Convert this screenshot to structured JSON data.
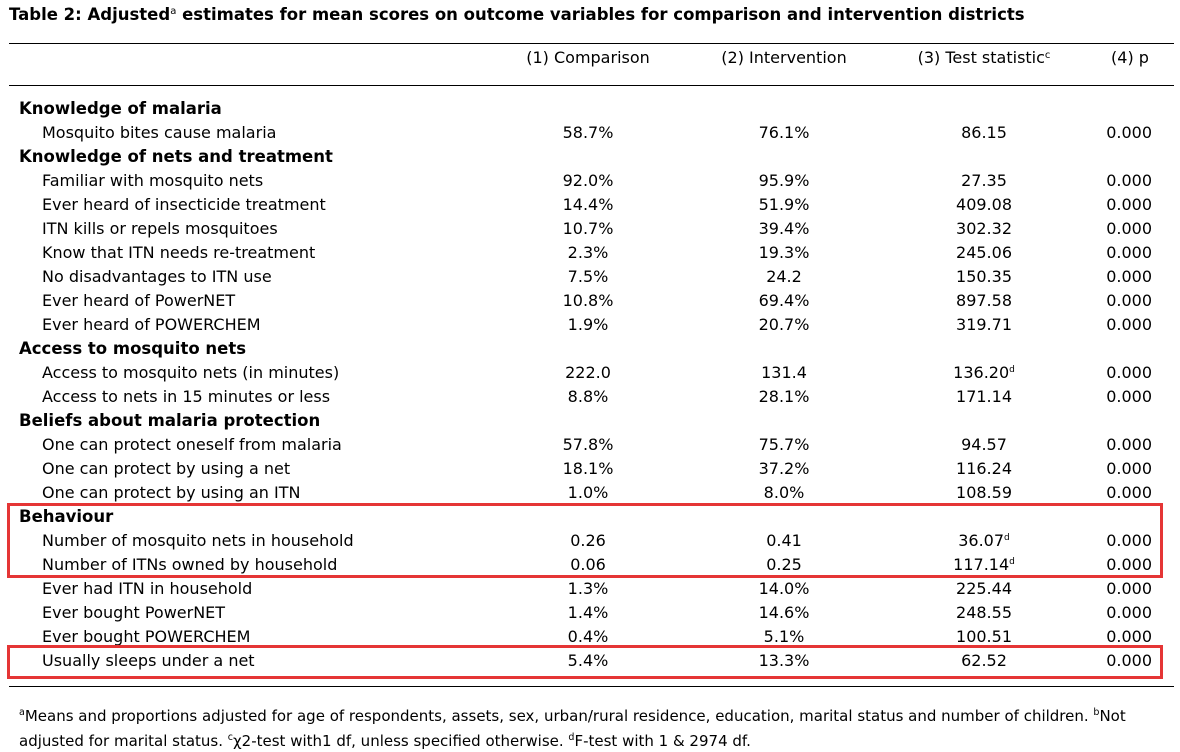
{
  "caption": {
    "prefix": "Table 2: Adjusted",
    "sup": "a",
    "suffix": " estimates for mean scores on outcome variables for comparison and intervention districts"
  },
  "columns": [
    {
      "label": "(1) Comparison",
      "sup": ""
    },
    {
      "label": "(2) Intervention",
      "sup": ""
    },
    {
      "label": "(3) Test statistic",
      "sup": "c"
    },
    {
      "label": "(4) p",
      "sup": ""
    }
  ],
  "rows": [
    {
      "type": "section",
      "label": "Knowledge of malaria"
    },
    {
      "type": "item",
      "label": "Mosquito bites cause malaria",
      "c1": "58.7%",
      "c2": "76.1%",
      "c3": "86.15",
      "c3sup": "",
      "p": "0.000"
    },
    {
      "type": "section",
      "label": "Knowledge of nets and treatment"
    },
    {
      "type": "item",
      "label": "Familiar with mosquito nets",
      "c1": "92.0%",
      "c2": "95.9%",
      "c3": "27.35",
      "c3sup": "",
      "p": "0.000"
    },
    {
      "type": "item",
      "label": "Ever heard of insecticide treatment",
      "c1": "14.4%",
      "c2": "51.9%",
      "c3": "409.08",
      "c3sup": "",
      "p": "0.000"
    },
    {
      "type": "item",
      "label": "ITN kills or repels mosquitoes",
      "c1": "10.7%",
      "c2": "39.4%",
      "c3": "302.32",
      "c3sup": "",
      "p": "0.000"
    },
    {
      "type": "item",
      "label": "Know that ITN needs re-treatment",
      "c1": "2.3%",
      "c2": "19.3%",
      "c3": "245.06",
      "c3sup": "",
      "p": "0.000"
    },
    {
      "type": "item",
      "label": "No disadvantages to ITN use",
      "c1": "7.5%",
      "c2": "24.2",
      "c3": "150.35",
      "c3sup": "",
      "p": "0.000"
    },
    {
      "type": "item",
      "label": "Ever heard of PowerNET",
      "c1": "10.8%",
      "c2": "69.4%",
      "c3": "897.58",
      "c3sup": "",
      "p": "0.000"
    },
    {
      "type": "item",
      "label": "Ever heard of POWERCHEM",
      "c1": "1.9%",
      "c2": "20.7%",
      "c3": "319.71",
      "c3sup": "",
      "p": "0.000"
    },
    {
      "type": "section",
      "label": "Access to mosquito nets"
    },
    {
      "type": "item",
      "label": "Access to mosquito nets (in minutes)",
      "c1": "222.0",
      "c2": "131.4",
      "c3": "136.20",
      "c3sup": "d",
      "p": "0.000"
    },
    {
      "type": "item",
      "label": "Access to nets in 15 minutes or less",
      "c1": "8.8%",
      "c2": "28.1%",
      "c3": "171.14",
      "c3sup": "",
      "p": "0.000"
    },
    {
      "type": "section",
      "label": "Beliefs about malaria protection"
    },
    {
      "type": "item",
      "label": "One can protect oneself from malaria",
      "c1": "57.8%",
      "c2": "75.7%",
      "c3": "94.57",
      "c3sup": "",
      "p": "0.000"
    },
    {
      "type": "item",
      "label": "One can protect by using a net",
      "c1": "18.1%",
      "c2": "37.2%",
      "c3": "116.24",
      "c3sup": "",
      "p": "0.000"
    },
    {
      "type": "item",
      "label": "One can protect by using an ITN",
      "c1": "1.0%",
      "c2": "8.0%",
      "c3": "108.59",
      "c3sup": "",
      "p": "0.000"
    },
    {
      "type": "section",
      "label": "Behaviour"
    },
    {
      "type": "item",
      "label": "Number of mosquito nets in household",
      "c1": "0.26",
      "c2": "0.41",
      "c3": "36.07",
      "c3sup": "d",
      "p": "0.000"
    },
    {
      "type": "item",
      "label": "Number of ITNs owned by household",
      "c1": "0.06",
      "c2": "0.25",
      "c3": "117.14",
      "c3sup": "d",
      "p": "0.000"
    },
    {
      "type": "item",
      "label": "Ever had ITN in household",
      "c1": "1.3%",
      "c2": "14.0%",
      "c3": "225.44",
      "c3sup": "",
      "p": "0.000"
    },
    {
      "type": "item",
      "label": "Ever bought PowerNET",
      "c1": "1.4%",
      "c2": "14.6%",
      "c3": "248.55",
      "c3sup": "",
      "p": "0.000"
    },
    {
      "type": "item",
      "label": "Ever bought POWERCHEM",
      "c1": "0.4%",
      "c2": "5.1%",
      "c3": "100.51",
      "c3sup": "",
      "p": "0.000"
    },
    {
      "type": "item",
      "label": "Usually sleeps under a net",
      "c1": "5.4%",
      "c2": "13.3%",
      "c3": "62.52",
      "c3sup": "",
      "p": "0.000"
    }
  ],
  "highlight_color": "#e53535",
  "footnote": {
    "a_sup": "a",
    "a_text": "Means and proportions adjusted for age of respondents, assets, sex, urban/rural residence, education, marital status and number of children. ",
    "b_sup": "b",
    "b_text": "Not adjusted for marital status. ",
    "c_sup": "c",
    "c_text": "χ2-test with1 df, unless specified otherwise. ",
    "d_sup": "d",
    "d_text": "F-test with 1 & 2974 df."
  }
}
